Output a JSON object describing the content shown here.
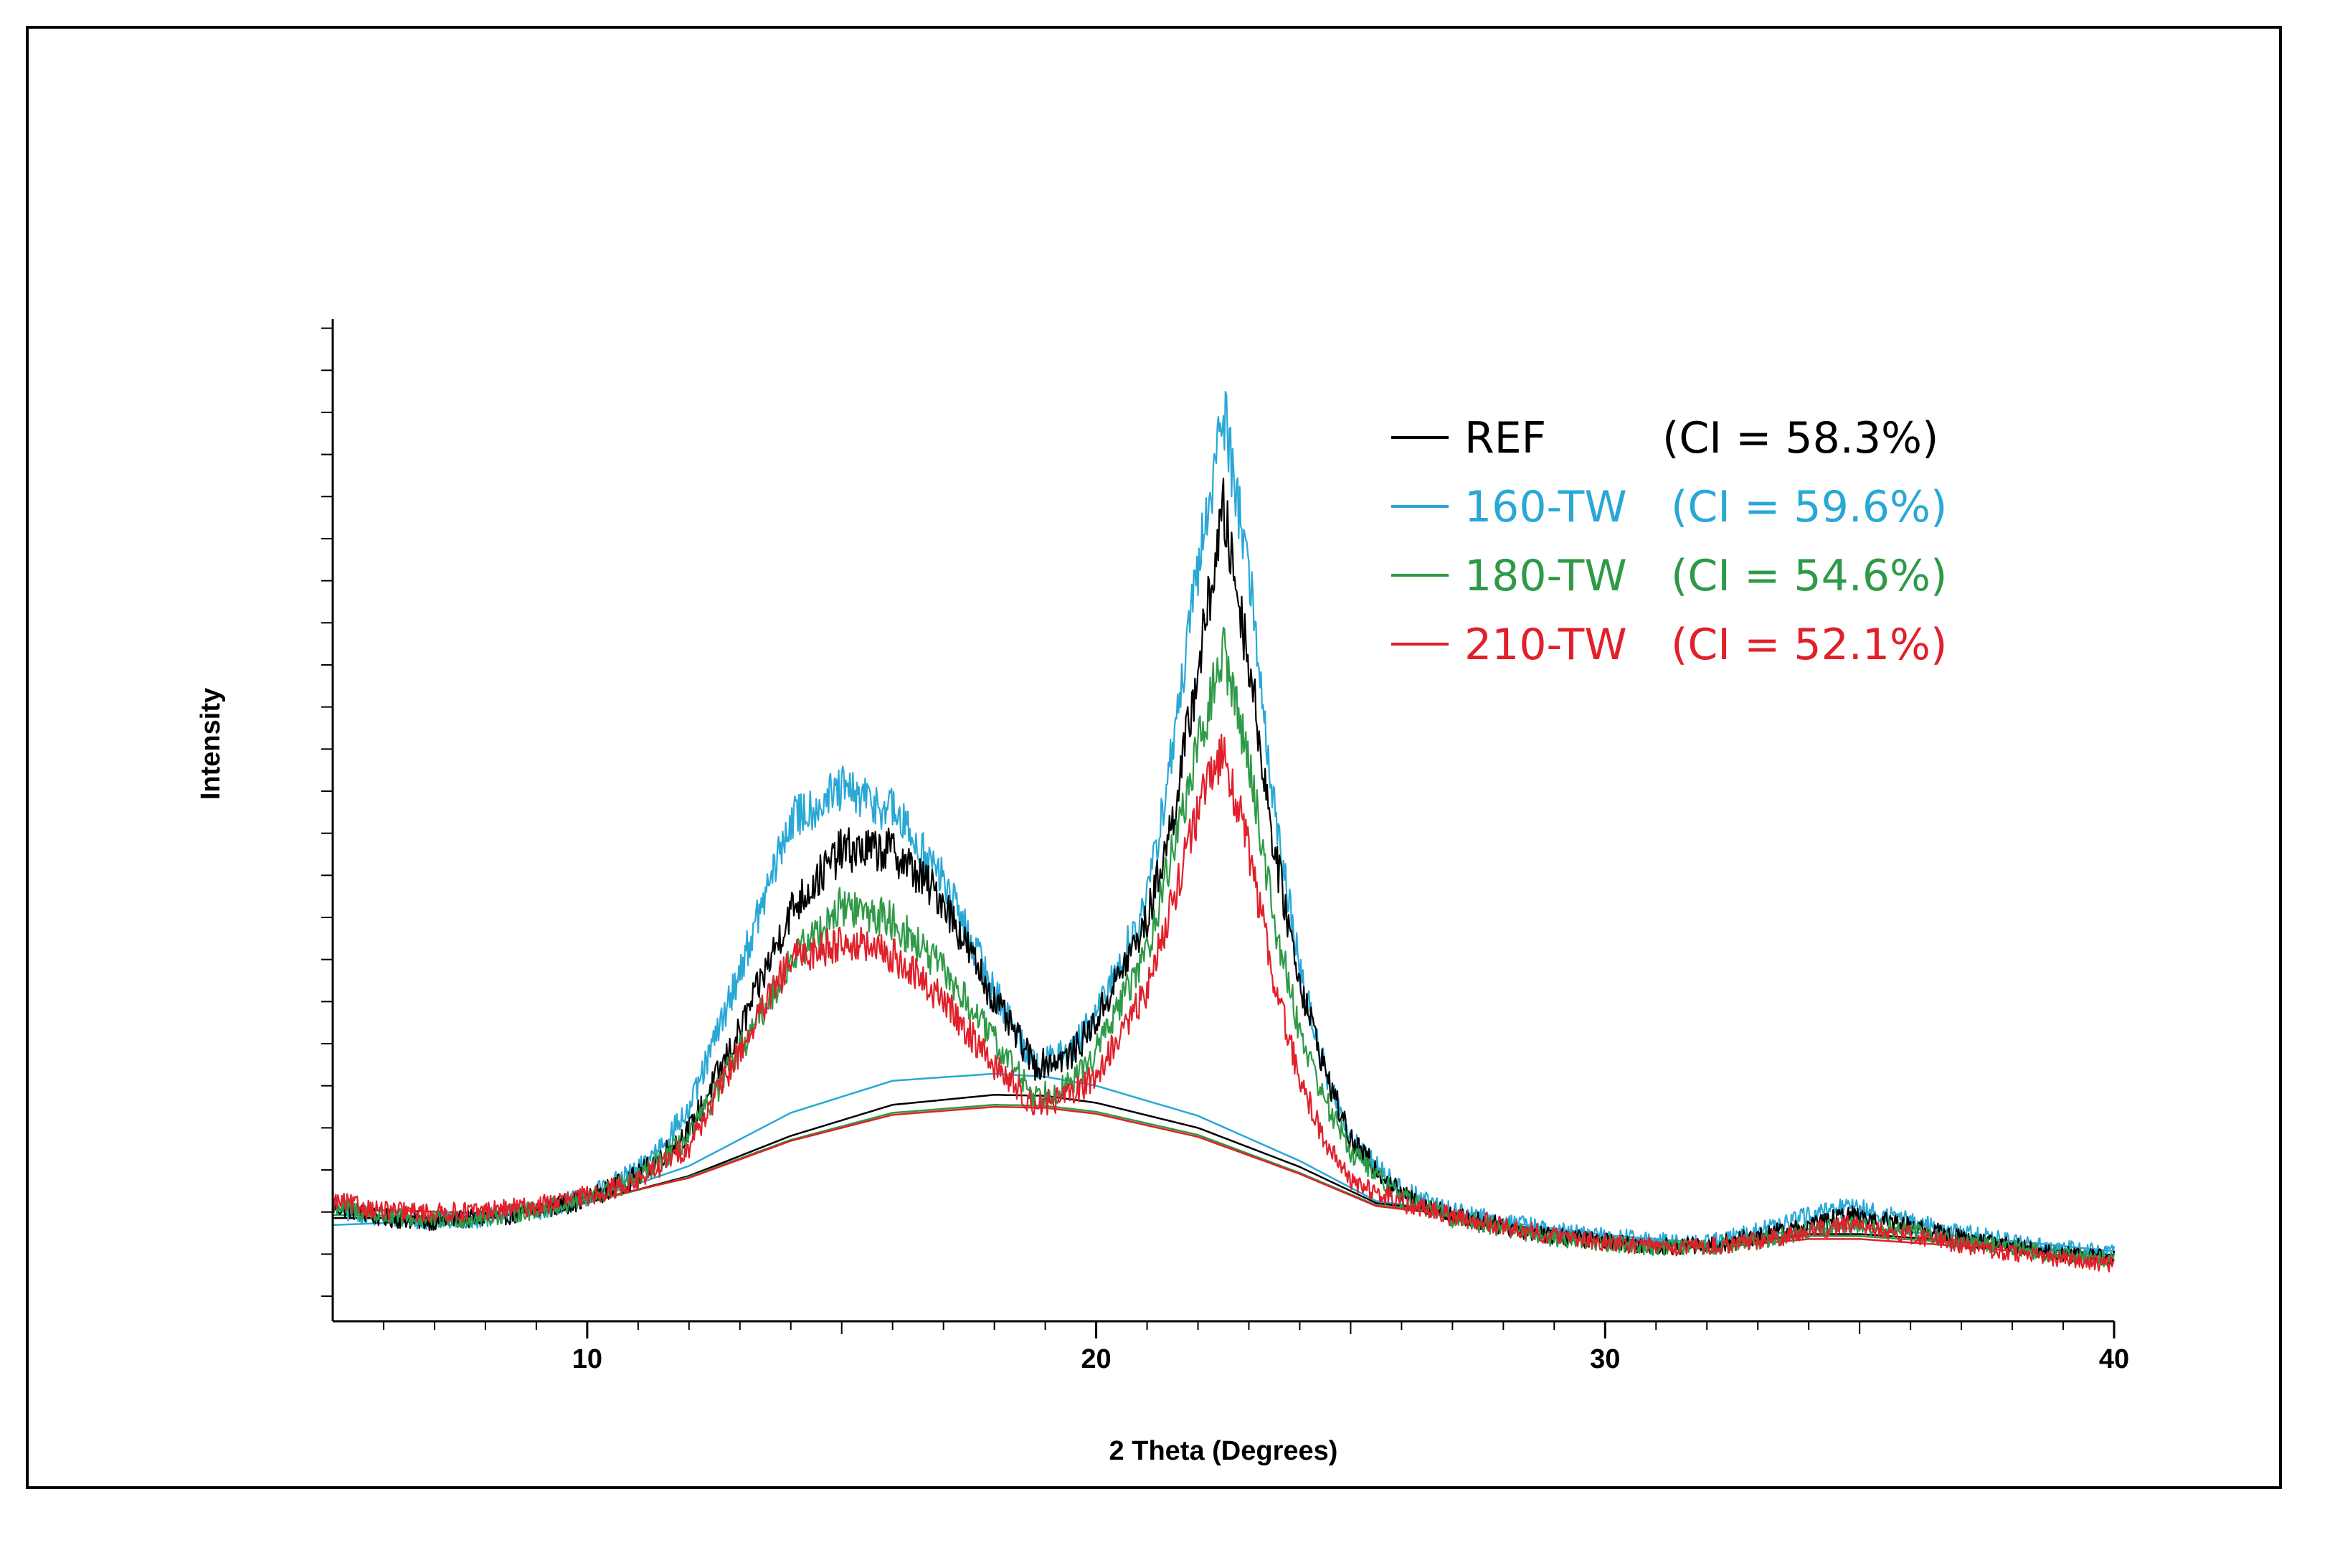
{
  "chart_data": {
    "type": "line",
    "title": "",
    "xlabel": "2 Theta (Degrees)",
    "ylabel": "Intensity",
    "xlim": [
      5,
      40
    ],
    "ylim": [
      0,
      100
    ],
    "x_ticks": [
      10,
      20,
      30,
      40
    ],
    "y_tick_labels": false,
    "grid": false,
    "legend_position": "top-right",
    "series": [
      {
        "name": "REF",
        "ci_label": "(CI = 58.3%)",
        "color": "#000000",
        "x": [
          5,
          6,
          7,
          8,
          9,
          10,
          11,
          12,
          13,
          14,
          15,
          16,
          17,
          18,
          18.8,
          19.5,
          20,
          21,
          21.5,
          22,
          22.5,
          23,
          23.5,
          24,
          24.5,
          25,
          26,
          27,
          28,
          29,
          30,
          31,
          32,
          33,
          34,
          34.7,
          35,
          36,
          37,
          38,
          39,
          40
        ],
        "y": [
          11.5,
          10.3,
          10,
          10.3,
          11,
          12.2,
          14.5,
          19,
          29,
          41,
          47,
          47,
          42,
          32,
          25.5,
          26.5,
          30,
          40,
          50,
          65,
          81,
          66,
          47,
          34,
          25,
          18,
          12.6,
          10.5,
          9.5,
          8.5,
          8,
          7.5,
          7.5,
          8.5,
          9.5,
          10.5,
          10.5,
          9.5,
          8.3,
          7.5,
          6.8,
          6.3
        ],
        "baseline": [
          [
            5,
            10.3
          ],
          [
            8,
            10.3
          ],
          [
            10,
            11.8
          ],
          [
            12,
            14.5
          ],
          [
            14,
            18.5
          ],
          [
            16,
            21.6
          ],
          [
            18,
            22.6
          ],
          [
            19,
            22.5
          ],
          [
            20,
            21.8
          ],
          [
            22,
            19.3
          ],
          [
            24,
            15.4
          ],
          [
            25.5,
            11.8
          ],
          [
            26.5,
            11.2
          ],
          [
            28,
            9.7
          ],
          [
            30,
            8.3
          ],
          [
            32,
            7.5
          ],
          [
            34,
            8.7
          ],
          [
            35,
            8.7
          ],
          [
            37,
            8
          ],
          [
            40,
            6.6
          ]
        ]
      },
      {
        "name": "160-TW",
        "ci_label": "(CI = 59.6%)",
        "color": "#29A8D6",
        "x": [
          5,
          6,
          7,
          8,
          9,
          10,
          11,
          12,
          13,
          14,
          15,
          16,
          17,
          18,
          18.8,
          19.5,
          20,
          21,
          21.5,
          22,
          22.5,
          23,
          23.5,
          24,
          24.5,
          25,
          26,
          27,
          28,
          29,
          30,
          31,
          32,
          33,
          34,
          34.7,
          35,
          36,
          37,
          38,
          39,
          40
        ],
        "y": [
          11.2,
          10.3,
          10,
          10.3,
          11,
          12.5,
          15,
          21,
          35,
          50,
          53,
          51,
          44,
          33,
          25.5,
          27,
          30.5,
          42,
          57,
          75,
          91,
          75,
          51,
          35,
          25,
          18,
          13,
          11,
          10,
          9,
          8.5,
          8,
          7.8,
          9,
          10.5,
          11.3,
          11.3,
          10,
          8.8,
          8,
          7.3,
          6.8
        ],
        "baseline": [
          [
            5,
            9.6
          ],
          [
            8,
            10.2
          ],
          [
            10,
            12
          ],
          [
            12,
            15.5
          ],
          [
            14,
            20.8
          ],
          [
            16,
            24
          ],
          [
            18,
            24.7
          ],
          [
            19,
            24.4
          ],
          [
            20,
            23.5
          ],
          [
            22,
            20.5
          ],
          [
            24,
            16
          ],
          [
            25.5,
            12
          ],
          [
            26.5,
            11.3
          ],
          [
            28,
            9.9
          ],
          [
            30,
            8.6
          ],
          [
            32,
            7.8
          ],
          [
            34,
            9.2
          ],
          [
            35,
            9.3
          ],
          [
            37,
            8.5
          ],
          [
            40,
            7
          ]
        ]
      },
      {
        "name": "180-TW",
        "ci_label": "(CI = 54.6%)",
        "color": "#2E9A47",
        "x": [
          5,
          6,
          7,
          8,
          9,
          10,
          11,
          12,
          13,
          14,
          15,
          16,
          17,
          18,
          18.8,
          19.5,
          20,
          21,
          21.5,
          22,
          22.5,
          23,
          23.5,
          24,
          24.5,
          25,
          26,
          27,
          28,
          29,
          30,
          31,
          32,
          33,
          34,
          34.7,
          35,
          36,
          37,
          38,
          39,
          40
        ],
        "y": [
          11.6,
          10.4,
          10.1,
          10.4,
          11.1,
          12.2,
          14.2,
          18.3,
          27,
          36,
          41.5,
          40,
          35,
          28,
          22.5,
          23.5,
          27,
          37,
          47,
          57,
          67,
          56,
          40,
          29,
          22,
          17,
          12.3,
          10.3,
          9.3,
          8.3,
          7.8,
          7.4,
          7.4,
          8,
          9,
          9.7,
          9.7,
          9,
          8,
          7.3,
          6.6,
          6.1
        ],
        "baseline": [
          [
            5,
            10.6
          ],
          [
            8,
            10.4
          ],
          [
            10,
            11.8
          ],
          [
            12,
            14.4
          ],
          [
            14,
            18.1
          ],
          [
            16,
            20.8
          ],
          [
            18,
            21.6
          ],
          [
            19,
            21.5
          ],
          [
            20,
            20.9
          ],
          [
            22,
            18.6
          ],
          [
            24,
            14.8
          ],
          [
            25.5,
            11.6
          ],
          [
            26.5,
            11
          ],
          [
            28,
            9.6
          ],
          [
            30,
            8.2
          ],
          [
            32,
            7.4
          ],
          [
            34,
            8.5
          ],
          [
            35,
            8.5
          ],
          [
            37,
            7.8
          ],
          [
            40,
            6.4
          ]
        ]
      },
      {
        "name": "210-TW",
        "ci_label": "(CI = 52.1%)",
        "color": "#E0202A",
        "x": [
          5,
          6,
          7,
          8,
          9,
          10,
          11,
          12,
          13,
          14,
          15,
          16,
          17,
          18,
          18.8,
          19.5,
          20,
          21,
          21.5,
          22,
          22.5,
          23,
          23.5,
          24,
          24.5,
          25,
          26,
          27,
          28,
          29,
          30,
          31,
          32,
          33,
          34,
          34.7,
          35,
          36,
          37,
          38,
          39,
          40
        ],
        "y": [
          12,
          11,
          10.8,
          11,
          11.5,
          12.5,
          14,
          17.5,
          27,
          36,
          38,
          36.5,
          32,
          25.5,
          21.5,
          22.5,
          24.5,
          33,
          42,
          51,
          57,
          47,
          34,
          24,
          18,
          14,
          11.8,
          10.5,
          9.5,
          8.5,
          7.9,
          7.4,
          7.4,
          8,
          8.9,
          9.6,
          9.5,
          8.6,
          7.6,
          6.8,
          6.2,
          5.6
        ],
        "baseline": [
          [
            5,
            11.2
          ],
          [
            8,
            10.8
          ],
          [
            10,
            12
          ],
          [
            12,
            14.3
          ],
          [
            14,
            18
          ],
          [
            16,
            20.6
          ],
          [
            18,
            21.4
          ],
          [
            19,
            21.3
          ],
          [
            20,
            20.7
          ],
          [
            22,
            18.4
          ],
          [
            24,
            14.7
          ],
          [
            25.5,
            11.5
          ],
          [
            26.5,
            10.9
          ],
          [
            28,
            9.5
          ],
          [
            30,
            8.1
          ],
          [
            32,
            7.3
          ],
          [
            34,
            8.2
          ],
          [
            35,
            8.2
          ],
          [
            37,
            7.5
          ],
          [
            40,
            6.1
          ]
        ]
      }
    ]
  }
}
